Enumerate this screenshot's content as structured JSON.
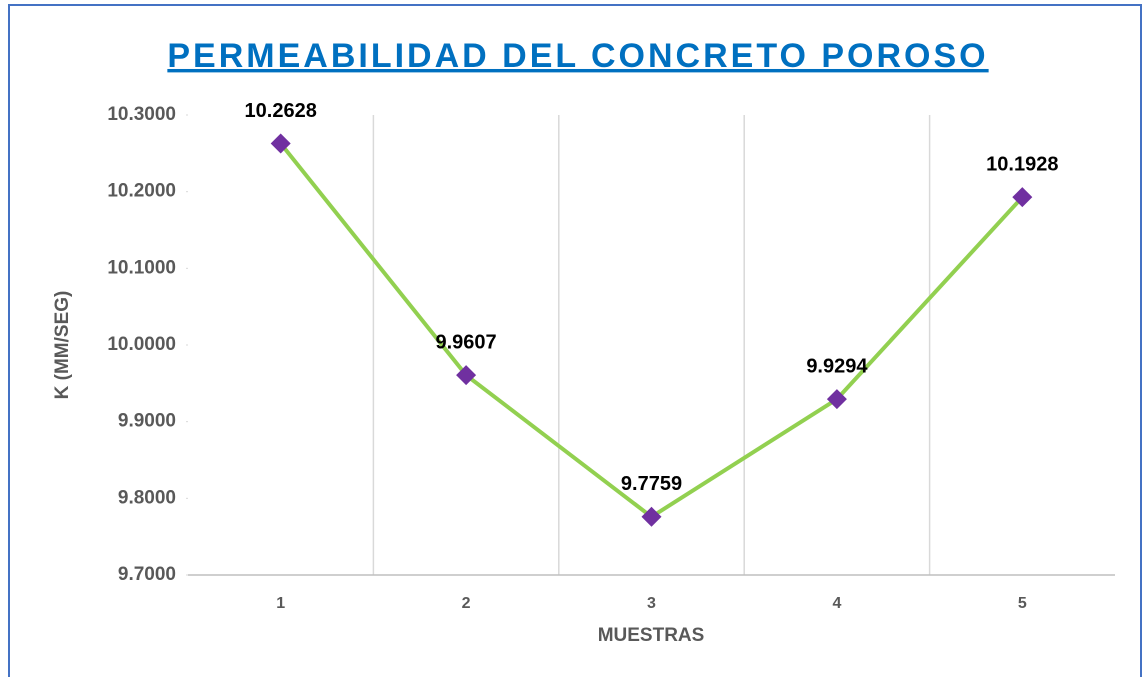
{
  "chart_data": {
    "type": "line",
    "title": "PERMEABILIDAD  DEL CONCRETO  POROSO",
    "title_color": "#0070c0",
    "x_label": "MUESTRAS",
    "y_label": "K (MM/SEG)",
    "categories": [
      "1",
      "2",
      "3",
      "4",
      "5"
    ],
    "series": [
      {
        "name": "K",
        "color": "#92d050",
        "marker_color": "#7030a0",
        "values": [
          10.2628,
          9.9607,
          9.7759,
          9.9294,
          10.1928
        ]
      }
    ],
    "ylim": [
      9.7,
      10.3
    ],
    "yticks": [
      {
        "value": 9.7,
        "label": "9.7000"
      },
      {
        "value": 9.8,
        "label": "9.8000"
      },
      {
        "value": 9.9,
        "label": "9.9000"
      },
      {
        "value": 10.0,
        "label": "10.0000"
      },
      {
        "value": 10.1,
        "label": "10.1000"
      },
      {
        "value": 10.2,
        "label": "10.2000"
      },
      {
        "value": 10.3,
        "label": "10.3000"
      }
    ],
    "grid": "x",
    "legend": false
  }
}
